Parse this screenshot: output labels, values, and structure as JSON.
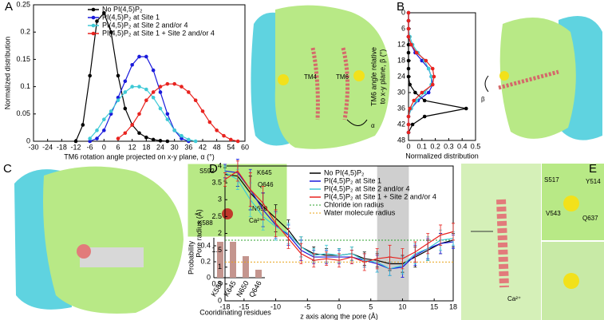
{
  "panels": [
    "A",
    "B",
    "C",
    "D",
    "E"
  ],
  "annotations": [
    "TM4",
    "TM6",
    "α",
    "β",
    "S592",
    "K645",
    "Q646",
    "N650",
    "K588",
    "Ca²⁺",
    "S517",
    "Y514",
    "V543",
    "Q637",
    "Ca²⁺"
  ],
  "chart_data": [
    {
      "type": "line",
      "markers": true,
      "legend": "upper-left",
      "xlabel": "TM6 rotation angle projected on x-y plane, α (°)",
      "ylabel": "Normalized distribution",
      "xlim": [
        -30,
        60
      ],
      "xticks": [
        -30,
        -24,
        -18,
        -12,
        -6,
        0,
        6,
        12,
        18,
        24,
        30,
        36,
        42,
        48,
        54,
        60
      ],
      "ylim": [
        0,
        0.25
      ],
      "yticks": [
        0,
        0.05,
        0.1,
        0.15,
        0.2,
        0.25
      ],
      "x": [
        -12,
        -9,
        -6,
        -3,
        0,
        3,
        6,
        9,
        12,
        15,
        18,
        21,
        24,
        27,
        30,
        33,
        36,
        39,
        42,
        45,
        48,
        51,
        54,
        57
      ],
      "series": [
        {
          "name": "No PI(4,5)P₂",
          "color": "#000000",
          "values": [
            0,
            0.03,
            0.12,
            0.22,
            0.235,
            0.2,
            0.12,
            0.06,
            0.03,
            0.015,
            0.007,
            0.003,
            0.001,
            0,
            null,
            null,
            null,
            null,
            null,
            null,
            null,
            null,
            null,
            null
          ]
        },
        {
          "name": "PI(4,5)P₂ at Site 1",
          "color": "#1a1adb",
          "values": [
            null,
            null,
            0,
            0.005,
            0.02,
            0.05,
            0.08,
            0.11,
            0.14,
            0.155,
            0.155,
            0.13,
            0.09,
            0.05,
            0.02,
            0.005,
            0,
            null,
            null,
            null,
            null,
            null,
            null,
            null
          ]
        },
        {
          "name": "PI(4,5)P₂ at Site 2 and/or 4",
          "color": "#3ec9d6",
          "values": [
            null,
            null,
            0.005,
            0.02,
            0.04,
            0.055,
            0.075,
            0.09,
            0.1,
            0.1,
            0.095,
            0.08,
            0.06,
            0.04,
            0.02,
            0.01,
            0.003,
            0,
            null,
            null,
            null,
            null,
            null,
            null
          ]
        },
        {
          "name": "PI(4,5)P₂ at Site 1 + Site 2 and/or 4",
          "color": "#e8231f",
          "values": [
            null,
            null,
            null,
            null,
            null,
            null,
            0.005,
            0.015,
            0.03,
            0.05,
            0.075,
            0.09,
            0.1,
            0.105,
            0.105,
            0.1,
            0.09,
            0.075,
            0.055,
            0.035,
            0.02,
            0.01,
            0.003,
            0
          ]
        }
      ]
    },
    {
      "type": "line",
      "orientation": "horizontal",
      "markers": true,
      "y_inverted": true,
      "xlabel": "Normalized distribution",
      "ylabel": [
        "TM6 angle relative",
        "to x-y plane, β (°)"
      ],
      "xlim": [
        0,
        0.5
      ],
      "xticks": [
        0,
        0.1,
        0.2,
        0.3,
        0.4,
        0.5
      ],
      "ylim": [
        0,
        48
      ],
      "yticks": [
        0,
        6,
        12,
        18,
        24,
        30,
        36,
        42,
        48
      ],
      "y": [
        0,
        3,
        6,
        9,
        12,
        15,
        18,
        21,
        24,
        27,
        30,
        33,
        36,
        39,
        42,
        45
      ],
      "series": [
        {
          "name": "No PI(4,5)P₂",
          "color": "#000000",
          "values": [
            0,
            0,
            0,
            0,
            0,
            0,
            0,
            0,
            0,
            0.01,
            0.05,
            0.12,
            0.43,
            0.12,
            0.03,
            0
          ]
        },
        {
          "name": "PI(4,5)P₂ at Site 1",
          "color": "#1a1adb",
          "values": [
            0,
            0,
            0,
            0,
            0.02,
            0.05,
            0.1,
            0.15,
            0.17,
            0.18,
            0.15,
            0.07,
            0.02,
            0,
            0,
            0
          ]
        },
        {
          "name": "PI(4,5)P₂ at Site 2 and/or 4",
          "color": "#3ec9d6",
          "values": [
            0,
            0,
            0,
            0.01,
            0.03,
            0.07,
            0.12,
            0.15,
            0.17,
            0.17,
            0.12,
            0.06,
            0.02,
            0,
            0,
            0
          ]
        },
        {
          "name": "PI(4,5)P₂ at Site 1 + Site 2 and/or 4",
          "color": "#e8231f",
          "values": [
            0,
            0,
            0,
            0,
            0.02,
            0.06,
            0.13,
            0.18,
            0.19,
            0.18,
            0.1,
            0.04,
            0.01,
            0,
            0,
            0
          ]
        }
      ]
    },
    {
      "type": "bar",
      "color": "#c4958e",
      "xlabel": "Cooridinating residues",
      "ylabel": "Probability",
      "categories": [
        "K588",
        "K645",
        "N650",
        "Q646"
      ],
      "values": [
        0.45,
        0.45,
        0.27,
        0.1
      ],
      "ylim": [
        0,
        0.5
      ],
      "yticks": [
        0,
        0.2,
        0.4
      ]
    },
    {
      "type": "line",
      "legend": "upper-right",
      "xlabel": "z axis along the pore (Å)",
      "ylabel": "Pore radius (Å)",
      "xlim": [
        -18,
        18
      ],
      "xticks": [
        -18,
        -15,
        -10,
        -5,
        0,
        5,
        10,
        15,
        18
      ],
      "ylim": [
        0,
        4
      ],
      "yticks": [
        0,
        0.5,
        1,
        1.5,
        2,
        2.5,
        3,
        3.5,
        4
      ],
      "highlight": [
        6,
        11
      ],
      "x": [
        -18,
        -16,
        -14,
        -12,
        -10,
        -8,
        -6,
        -4,
        -2,
        0,
        2,
        4,
        6,
        8,
        10,
        12,
        14,
        16,
        18
      ],
      "series": [
        {
          "name": "No PI(4,5)P₂",
          "color": "#000000",
          "values": [
            3.75,
            3.7,
            3.2,
            2.8,
            2.45,
            2.1,
            1.6,
            1.4,
            1.35,
            1.35,
            1.4,
            1.25,
            1.2,
            1.1,
            1.1,
            1.3,
            1.5,
            1.7,
            1.8
          ],
          "errors": [
            0.2,
            0.3,
            0.5,
            0.4,
            0.4,
            0.3,
            0.3,
            0.2,
            0.2,
            0.2,
            0.2,
            0.2,
            0.2,
            0.2,
            0.25,
            0.3,
            0.3,
            0.3,
            0.2
          ]
        },
        {
          "name": "PI(4,5)P₂ at Site 1",
          "color": "#1a1adb",
          "values": [
            3.85,
            3.8,
            3.3,
            2.7,
            2.25,
            1.95,
            1.5,
            1.3,
            1.3,
            1.3,
            1.3,
            1.2,
            1.1,
            0.95,
            1.0,
            1.35,
            1.55,
            1.7,
            1.75
          ],
          "errors": [
            0.2,
            0.4,
            0.6,
            0.5,
            0.4,
            0.3,
            0.3,
            0.2,
            0.2,
            0.2,
            0.2,
            0.2,
            0.25,
            0.2,
            0.3,
            0.3,
            0.3,
            0.3,
            0.2
          ]
        },
        {
          "name": "PI(4,5)P₂ at Site 2 and/or 4",
          "color": "#3ec9d6",
          "values": [
            3.8,
            3.6,
            3.0,
            2.5,
            2.2,
            2.0,
            1.6,
            1.35,
            1.4,
            1.35,
            1.4,
            1.2,
            1.15,
            0.95,
            1.05,
            1.4,
            1.55,
            1.8,
            1.85
          ],
          "errors": [
            0.2,
            0.3,
            0.5,
            0.4,
            0.4,
            0.3,
            0.3,
            0.2,
            0.25,
            0.2,
            0.2,
            0.2,
            0.3,
            0.2,
            0.25,
            0.3,
            0.35,
            0.3,
            0.2
          ]
        },
        {
          "name": "PI(4,5)P₂ at Site 1 + Site 2 and/or 4",
          "color": "#e8231f",
          "values": [
            3.6,
            3.85,
            3.3,
            2.9,
            2.3,
            1.85,
            1.4,
            1.2,
            1.25,
            1.2,
            1.3,
            1.15,
            1.25,
            1.3,
            1.25,
            1.45,
            1.7,
            1.95,
            2.05
          ],
          "errors": [
            0.2,
            0.3,
            0.5,
            0.5,
            0.4,
            0.3,
            0.3,
            0.2,
            0.2,
            0.2,
            0.2,
            0.25,
            0.3,
            0.35,
            0.3,
            0.3,
            0.3,
            0.3,
            0.25
          ]
        }
      ],
      "reference_lines": [
        {
          "name": "Chloride ion radius",
          "value": 1.8,
          "color": "#2ca02c"
        },
        {
          "name": "Water molecule radius",
          "value": 1.15,
          "color": "#e8a317"
        }
      ]
    }
  ]
}
